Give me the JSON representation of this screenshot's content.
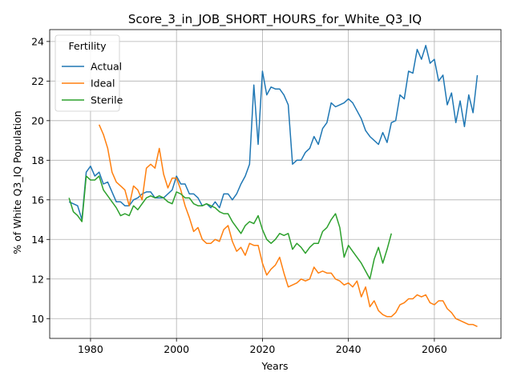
{
  "chart_data": {
    "type": "line",
    "title": "Score_3_in_JOB_SHORT_HOURS_for_White_Q3_IQ",
    "xlabel": "Years",
    "ylabel": "% of White Q3_IQ Population",
    "xlim": [
      1970.5,
      2075.5
    ],
    "ylim": [
      9.0,
      24.6
    ],
    "xticks": [
      1980,
      2000,
      2020,
      2040,
      2060
    ],
    "yticks": [
      10,
      12,
      14,
      16,
      18,
      20,
      22,
      24
    ],
    "grid": true,
    "legend": {
      "title": "Fertility",
      "placement": "top-left"
    },
    "series": [
      {
        "name": "Actual",
        "color": "#1f77b4",
        "x": [
          1975,
          1976,
          1977,
          1978,
          1979,
          1980,
          1981,
          1982,
          1983,
          1984,
          1985,
          1986,
          1987,
          1988,
          1989,
          1990,
          1991,
          1992,
          1993,
          1994,
          1995,
          1996,
          1997,
          1998,
          1999,
          2000,
          2001,
          2002,
          2003,
          2004,
          2005,
          2006,
          2007,
          2008,
          2009,
          2010,
          2011,
          2012,
          2013,
          2014,
          2015,
          2016,
          2017,
          2018,
          2019,
          2020,
          2021,
          2022,
          2023,
          2024,
          2025,
          2026,
          2027,
          2028,
          2029,
          2030,
          2031,
          2032,
          2033,
          2034,
          2035,
          2036,
          2037,
          2038,
          2039,
          2040,
          2041,
          2042,
          2043,
          2044,
          2045,
          2046,
          2047,
          2048,
          2049,
          2050,
          2051,
          2052,
          2053,
          2054,
          2055,
          2056,
          2057,
          2058,
          2059,
          2060,
          2061,
          2062,
          2063,
          2064,
          2065,
          2066,
          2067,
          2068,
          2069,
          2070
        ],
        "values": [
          15.9,
          15.8,
          15.7,
          15.0,
          17.4,
          17.7,
          17.2,
          17.4,
          16.8,
          16.9,
          16.4,
          15.9,
          15.9,
          15.7,
          15.7,
          16.0,
          16.1,
          16.3,
          16.4,
          16.4,
          16.1,
          16.1,
          16.1,
          16.3,
          16.5,
          17.2,
          16.8,
          16.8,
          16.3,
          16.3,
          16.1,
          15.7,
          15.8,
          15.6,
          15.9,
          15.6,
          16.3,
          16.3,
          16.0,
          16.3,
          16.8,
          17.2,
          17.8,
          21.8,
          18.8,
          22.5,
          21.3,
          21.7,
          21.6,
          21.6,
          21.3,
          20.8,
          17.8,
          18.0,
          18.0,
          18.4,
          18.6,
          19.2,
          18.8,
          19.6,
          19.9,
          20.9,
          20.7,
          20.8,
          20.9,
          21.1,
          20.9,
          20.5,
          20.1,
          19.5,
          19.2,
          19.0,
          18.8,
          19.4,
          18.9,
          19.9,
          20.0,
          21.3,
          21.1,
          22.5,
          22.4,
          23.6,
          23.1,
          23.8,
          22.9,
          23.1,
          22.0,
          22.3,
          20.8,
          21.4,
          19.9,
          21.0,
          19.7,
          21.3,
          20.4,
          22.3
        ]
      },
      {
        "name": "Ideal",
        "color": "#ff7f0e",
        "x": [
          1982,
          1983,
          1984,
          1985,
          1986,
          1987,
          1988,
          1989,
          1990,
          1991,
          1992,
          1993,
          1994,
          1995,
          1996,
          1997,
          1998,
          1999,
          2000,
          2001,
          2002,
          2003,
          2004,
          2005,
          2006,
          2007,
          2008,
          2009,
          2010,
          2011,
          2012,
          2013,
          2014,
          2015,
          2016,
          2017,
          2018,
          2019,
          2020,
          2021,
          2022,
          2023,
          2024,
          2025,
          2026,
          2027,
          2028,
          2029,
          2030,
          2031,
          2032,
          2033,
          2034,
          2035,
          2036,
          2037,
          2038,
          2039,
          2040,
          2041,
          2042,
          2043,
          2044,
          2045,
          2046,
          2047,
          2048,
          2049,
          2050,
          2051,
          2052,
          2053,
          2054,
          2055,
          2056,
          2057,
          2058,
          2059,
          2060,
          2061,
          2062,
          2063,
          2064,
          2065,
          2066,
          2067,
          2068,
          2069,
          2070
        ],
        "values": [
          19.8,
          19.3,
          18.6,
          17.4,
          16.9,
          16.7,
          16.5,
          15.7,
          16.7,
          16.5,
          16.0,
          17.6,
          17.8,
          17.6,
          18.6,
          17.3,
          16.6,
          17.1,
          17.1,
          16.5,
          15.7,
          15.1,
          14.4,
          14.6,
          14.0,
          13.8,
          13.8,
          14.0,
          13.9,
          14.5,
          14.7,
          13.9,
          13.4,
          13.6,
          13.2,
          13.8,
          13.7,
          13.7,
          12.8,
          12.2,
          12.5,
          12.7,
          13.1,
          12.3,
          11.6,
          11.7,
          11.8,
          12.0,
          11.9,
          12.0,
          12.6,
          12.3,
          12.4,
          12.3,
          12.3,
          12.0,
          11.9,
          11.7,
          11.8,
          11.6,
          11.9,
          11.1,
          11.6,
          10.6,
          10.9,
          10.4,
          10.2,
          10.1,
          10.1,
          10.3,
          10.7,
          10.8,
          11.0,
          11.0,
          11.2,
          11.1,
          11.2,
          10.8,
          10.7,
          10.9,
          10.9,
          10.5,
          10.3,
          10.0,
          9.9,
          9.8,
          9.7,
          9.7,
          9.6
        ]
      },
      {
        "name": "Sterile",
        "color": "#2ca02c",
        "x": [
          1975,
          1976,
          1977,
          1978,
          1979,
          1980,
          1981,
          1982,
          1983,
          1984,
          1985,
          1986,
          1987,
          1988,
          1989,
          1990,
          1991,
          1992,
          1993,
          1994,
          1995,
          1996,
          1997,
          1998,
          1999,
          2000,
          2001,
          2002,
          2003,
          2004,
          2005,
          2006,
          2007,
          2008,
          2009,
          2010,
          2011,
          2012,
          2013,
          2014,
          2015,
          2016,
          2017,
          2018,
          2019,
          2020,
          2021,
          2022,
          2023,
          2024,
          2025,
          2026,
          2027,
          2028,
          2029,
          2030,
          2031,
          2032,
          2033,
          2034,
          2035,
          2036,
          2037,
          2038,
          2039,
          2040,
          2041,
          2042,
          2043,
          2044,
          2045,
          2046,
          2047,
          2048,
          2049,
          2050
        ],
        "values": [
          16.1,
          15.4,
          15.2,
          14.9,
          17.2,
          17.0,
          17.0,
          17.2,
          16.5,
          16.2,
          15.9,
          15.6,
          15.2,
          15.3,
          15.2,
          15.7,
          15.5,
          15.8,
          16.1,
          16.2,
          16.1,
          16.2,
          16.1,
          15.9,
          15.8,
          16.4,
          16.3,
          16.1,
          16.1,
          15.8,
          15.7,
          15.7,
          15.8,
          15.7,
          15.6,
          15.4,
          15.3,
          15.3,
          14.9,
          14.6,
          14.3,
          14.7,
          14.9,
          14.8,
          15.2,
          14.5,
          14.0,
          13.8,
          14.0,
          14.3,
          14.2,
          14.3,
          13.5,
          13.8,
          13.6,
          13.3,
          13.6,
          13.8,
          13.8,
          14.4,
          14.6,
          15.0,
          15.3,
          14.6,
          13.1,
          13.7,
          13.4,
          13.1,
          12.8,
          12.4,
          12.0,
          13.0,
          13.6,
          12.8,
          13.5,
          14.3
        ]
      }
    ]
  }
}
